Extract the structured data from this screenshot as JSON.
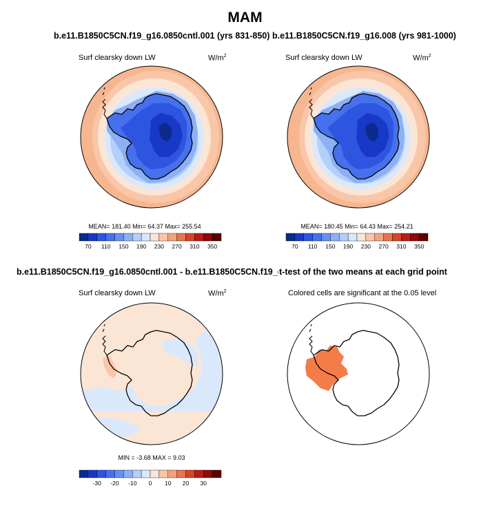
{
  "figure": {
    "season_title": "MAM"
  },
  "panels": [
    {
      "id": "case1",
      "title": "b.e11.B1850C5CN.f19_g16.0850cntl.001 (yrs 831-850)",
      "variable": "Surf clearsky down LW",
      "units_base": "W/m",
      "units_exp": "2",
      "stats": "MEAN= 181.40  Min=  64.37  Max= 255.54"
    },
    {
      "id": "case2",
      "title": "b.e11.B1850C5CN.f19_g16.008 (yrs 981-1000)",
      "variable": "Surf clearsky down LW",
      "units_base": "W/m",
      "units_exp": "2",
      "stats": "MEAN= 180.45  Min=  64.43  Max= 254.21"
    },
    {
      "id": "diff",
      "title": "b.e11.B1850C5CN.f19_g16.0850cntl.001 - b.e11.B1850C5CN.f19_g16.008",
      "variable": "Surf clearsky down LW",
      "units_base": "W/m",
      "units_exp": "2",
      "stats": "MIN =  -3.68 MAX =   9.03"
    },
    {
      "id": "ttest",
      "title": "t-test of the two means at each grid point",
      "variable": "Colored cells are significant at the 0.05 level"
    }
  ],
  "chart_data": [
    {
      "type": "heatmap",
      "projection": "polar-stereographic-south",
      "title": "b.e11.B1850C5CN.f19_g16.0850cntl.001 (yrs 831-850)",
      "field": "Surf clearsky down LW",
      "units": "W/m2",
      "stats": {
        "mean": 181.4,
        "min": 64.37,
        "max": 255.54
      },
      "colorbar": {
        "levels": [
          70,
          90,
          110,
          130,
          150,
          170,
          190,
          210,
          230,
          250,
          270,
          290,
          310,
          330,
          350
        ],
        "tick_labels": [
          "70",
          "110",
          "150",
          "190",
          "230",
          "270",
          "310",
          "350"
        ],
        "colors": [
          "#0c2a8c",
          "#1838c8",
          "#2d55e0",
          "#4670ec",
          "#6690f0",
          "#8cb0f6",
          "#b3cffa",
          "#dae8fc",
          "#fbe6d6",
          "#f9c7a8",
          "#f4a37c",
          "#ea7450",
          "#d6452a",
          "#b81c14",
          "#8c0a0a",
          "#5e0000"
        ]
      }
    },
    {
      "type": "heatmap",
      "projection": "polar-stereographic-south",
      "title": "b.e11.B1850C5CN.f19_g16.008 (yrs 981-1000)",
      "field": "Surf clearsky down LW",
      "units": "W/m2",
      "stats": {
        "mean": 180.45,
        "min": 64.43,
        "max": 254.21
      },
      "colorbar": {
        "levels": [
          70,
          90,
          110,
          130,
          150,
          170,
          190,
          210,
          230,
          250,
          270,
          290,
          310,
          330,
          350
        ],
        "tick_labels": [
          "70",
          "110",
          "150",
          "190",
          "230",
          "270",
          "310",
          "350"
        ],
        "colors": [
          "#0c2a8c",
          "#1838c8",
          "#2d55e0",
          "#4670ec",
          "#6690f0",
          "#8cb0f6",
          "#b3cffa",
          "#dae8fc",
          "#fbe6d6",
          "#f9c7a8",
          "#f4a37c",
          "#ea7450",
          "#d6452a",
          "#b81c14",
          "#8c0a0a",
          "#5e0000"
        ]
      }
    },
    {
      "type": "heatmap",
      "projection": "polar-stereographic-south",
      "title": "b.e11.B1850C5CN.f19_g16.0850cntl.001 - b.e11.B1850C5CN.f19_g16.008",
      "field": "Surf clearsky down LW",
      "units": "W/m2",
      "stats": {
        "min": -3.68,
        "max": 9.03
      },
      "colorbar": {
        "levels": [
          -35,
          -30,
          -25,
          -20,
          -15,
          -10,
          -5,
          0,
          5,
          10,
          15,
          20,
          25,
          30,
          35
        ],
        "tick_labels": [
          "-30",
          "-20",
          "-10",
          "0",
          "10",
          "20",
          "30"
        ],
        "colors": [
          "#0c2a8c",
          "#1838c8",
          "#2d55e0",
          "#4670ec",
          "#6690f0",
          "#8cb0f6",
          "#b3cffa",
          "#dae8fc",
          "#fbe6d6",
          "#f9c7a8",
          "#f4a37c",
          "#ea7450",
          "#d6452a",
          "#b81c14",
          "#8c0a0a",
          "#5e0000"
        ]
      }
    },
    {
      "type": "heatmap",
      "projection": "polar-stereographic-south",
      "title": "t-test of the two means at each grid point",
      "note": "Colored cells are significant at the 0.05 level",
      "significant_color": "#f47c48"
    }
  ]
}
